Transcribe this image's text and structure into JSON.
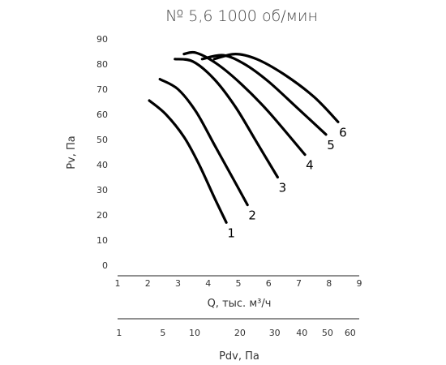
{
  "chart_data": {
    "type": "line",
    "title": "№ 5,6 1000 об/мин",
    "xlabel": "Q, тыс. м³/ч",
    "ylabel": "Pv, Па",
    "xlim": [
      1,
      9
    ],
    "ylim": [
      0,
      90
    ],
    "x_ticks": [
      "1",
      "2",
      "3",
      "4",
      "5",
      "6",
      "7",
      "8",
      "9"
    ],
    "y_ticks": [
      "0",
      "10",
      "20",
      "30",
      "40",
      "50",
      "60",
      "70",
      "80",
      "90"
    ],
    "grid": false,
    "series": [
      {
        "name": "1",
        "x": [
          2.05,
          2.6,
          3.2,
          3.7,
          4.2,
          4.6
        ],
        "y": [
          65.5,
          60,
          51,
          40,
          27,
          17
        ]
      },
      {
        "name": "2",
        "x": [
          2.4,
          3.0,
          3.6,
          4.2,
          4.8,
          5.3
        ],
        "y": [
          74,
          70,
          61,
          48,
          35,
          24
        ]
      },
      {
        "name": "3",
        "x": [
          2.9,
          3.5,
          4.2,
          4.9,
          5.6,
          6.3
        ],
        "y": [
          82,
          81,
          74,
          63,
          49,
          35
        ]
      },
      {
        "name": "4",
        "x": [
          3.2,
          3.6,
          4.3,
          5.1,
          6.0,
          7.2
        ],
        "y": [
          84,
          84.5,
          80,
          72,
          61,
          44
        ]
      },
      {
        "name": "5",
        "x": [
          3.8,
          4.5,
          5.2,
          6.0,
          7.0,
          7.9
        ],
        "y": [
          82,
          83.5,
          80,
          73,
          62,
          52
        ]
      },
      {
        "name": "6",
        "x": [
          4.2,
          4.9,
          5.6,
          6.5,
          7.5,
          8.3
        ],
        "y": [
          82,
          84,
          82,
          76,
          67,
          57
        ]
      }
    ],
    "secondary_axis": {
      "label": "Pdv, Па",
      "ticks": [
        {
          "label": "1",
          "q": 1.05
        },
        {
          "label": "5",
          "q": 2.5
        },
        {
          "label": "10",
          "q": 3.55
        },
        {
          "label": "20",
          "q": 5.05
        },
        {
          "label": "30",
          "q": 6.2
        },
        {
          "label": "40",
          "q": 7.1
        },
        {
          "label": "50",
          "q": 7.95
        },
        {
          "label": "60",
          "q": 8.7
        }
      ]
    }
  }
}
